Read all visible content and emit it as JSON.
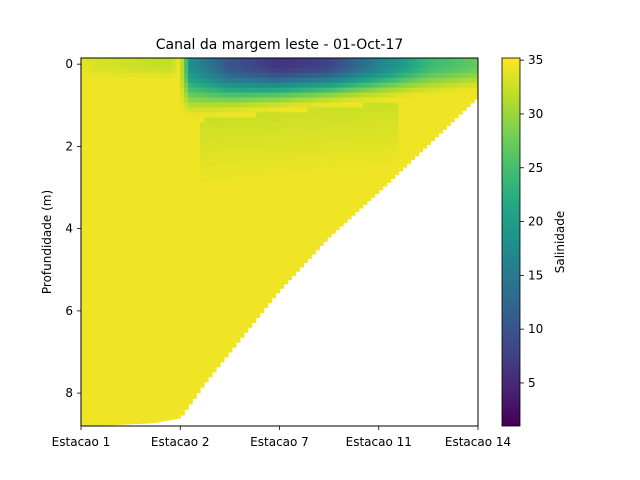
{
  "chart_data": {
    "type": "heatmap",
    "title": "Canal da margem leste - 01-Oct-17",
    "xlabel": "",
    "ylabel": "Profundidade (m)",
    "colorbar_label": "Salinidade",
    "colormap": "viridis",
    "x_categories": [
      "Estacao 1",
      "Estacao 2",
      "Estacao 7",
      "Estacao 11",
      "Estacao 14"
    ],
    "xlim": [
      0,
      4
    ],
    "ylim": [
      8.8,
      -0.15
    ],
    "y_ticks": [
      0,
      2,
      4,
      6,
      8
    ],
    "colorbar_range": [
      1,
      35.2
    ],
    "colorbar_ticks": [
      5,
      10,
      15,
      20,
      25,
      30,
      35
    ],
    "bottom_depth_by_x": [
      [
        0,
        8.8
      ],
      [
        0.72,
        8.72
      ],
      [
        1.0,
        8.6
      ],
      [
        1.25,
        7.75
      ],
      [
        1.5,
        7.0
      ],
      [
        2.0,
        5.5
      ],
      [
        2.5,
        4.2
      ],
      [
        3.0,
        3.1
      ],
      [
        3.5,
        1.95
      ],
      [
        4.0,
        0.8
      ]
    ],
    "surface_salinity_by_x": [
      [
        0,
        34
      ],
      [
        0.2,
        33
      ],
      [
        0.9,
        32
      ],
      [
        1.0,
        34.5
      ],
      [
        1.1,
        18
      ],
      [
        1.5,
        10
      ],
      [
        2.0,
        6
      ],
      [
        2.5,
        8
      ],
      [
        3.0,
        16
      ],
      [
        3.5,
        24
      ],
      [
        4.0,
        27
      ]
    ],
    "deep_salinity": 34.5
  }
}
